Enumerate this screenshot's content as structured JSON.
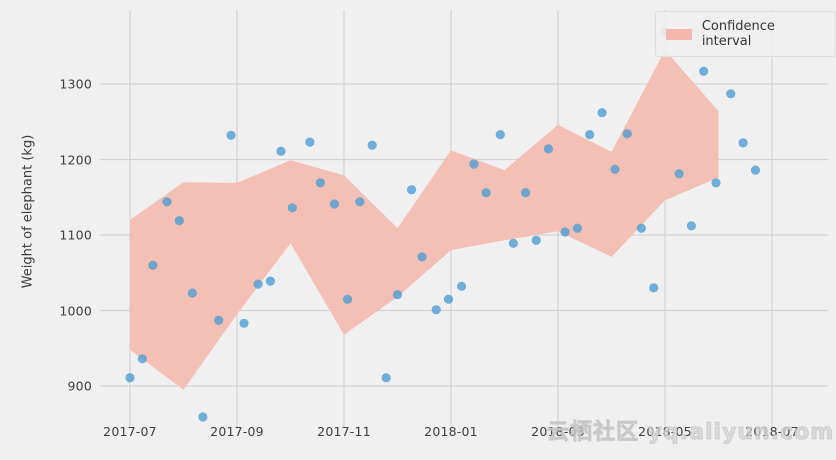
{
  "watermark": {
    "text": "云栖社区 yq.aliyun.com"
  },
  "chart_data": {
    "type": "scatter",
    "title": "",
    "xlabel": "",
    "ylabel": "Weight of elephant (kg)",
    "grid": true,
    "legend": {
      "label": "Confidence interval",
      "position": "upper right"
    },
    "x_tick_labels": [
      "2017-07",
      "2017-09",
      "2017-11",
      "2018-01",
      "2018-03",
      "2018-05",
      "2018-07"
    ],
    "y_ticks": [
      900,
      1000,
      1100,
      1200,
      1300
    ],
    "ylim": [
      855,
      1400
    ],
    "xlim": [
      "2017-06-14",
      "2018-08-02"
    ],
    "series": [
      {
        "name": "Weight of elephant (kg)",
        "type": "scatter",
        "points": [
          [
            "2017-07-01",
            911
          ],
          [
            "2017-07-08",
            936
          ],
          [
            "2017-07-14",
            1060
          ],
          [
            "2017-07-22",
            1144
          ],
          [
            "2017-07-29",
            1119
          ],
          [
            "2017-08-06",
            1023
          ],
          [
            "2017-08-12",
            859
          ],
          [
            "2017-08-21",
            987
          ],
          [
            "2017-08-28",
            1232
          ],
          [
            "2017-09-05",
            983
          ],
          [
            "2017-09-13",
            1035
          ],
          [
            "2017-09-20",
            1039
          ],
          [
            "2017-09-26",
            1211
          ],
          [
            "2017-10-02",
            1136
          ],
          [
            "2017-10-12",
            1223
          ],
          [
            "2017-10-18",
            1169
          ],
          [
            "2017-10-26",
            1141
          ],
          [
            "2017-11-03",
            1015
          ],
          [
            "2017-11-10",
            1144
          ],
          [
            "2017-11-17",
            1219
          ],
          [
            "2017-11-25",
            911
          ],
          [
            "2017-12-01",
            1021
          ],
          [
            "2017-12-09",
            1160
          ],
          [
            "2017-12-15",
            1071
          ],
          [
            "2017-12-23",
            1001
          ],
          [
            "2017-12-30",
            1015
          ],
          [
            "2018-01-07",
            1032
          ],
          [
            "2018-01-14",
            1194
          ],
          [
            "2018-01-21",
            1156
          ],
          [
            "2018-01-29",
            1233
          ],
          [
            "2018-02-06",
            1089
          ],
          [
            "2018-02-13",
            1156
          ],
          [
            "2018-02-19",
            1093
          ],
          [
            "2018-02-26",
            1214
          ],
          [
            "2018-03-05",
            1104
          ],
          [
            "2018-03-12",
            1109
          ],
          [
            "2018-03-19",
            1233
          ],
          [
            "2018-03-26",
            1262
          ],
          [
            "2018-04-03",
            1187
          ],
          [
            "2018-04-10",
            1234
          ],
          [
            "2018-04-18",
            1109
          ],
          [
            "2018-04-25",
            1030
          ],
          [
            "2018-05-01",
            1369
          ],
          [
            "2018-05-09",
            1181
          ],
          [
            "2018-05-16",
            1112
          ],
          [
            "2018-05-23",
            1317
          ],
          [
            "2018-05-30",
            1169
          ],
          [
            "2018-06-08",
            1287
          ],
          [
            "2018-06-15",
            1222
          ],
          [
            "2018-06-22",
            1186
          ]
        ]
      },
      {
        "name": "Confidence interval",
        "type": "band",
        "points": [
          [
            "2017-07",
            948,
            1120
          ],
          [
            "2017-08",
            895,
            1170
          ],
          [
            "2017-09",
            995,
            1169
          ],
          [
            "2017-10",
            1089,
            1199
          ],
          [
            "2017-11",
            968,
            1179
          ],
          [
            "2017-12",
            1018,
            1109
          ],
          [
            "2018-01",
            1080,
            1212
          ],
          [
            "2018-02",
            1093,
            1186
          ],
          [
            "2018-03",
            1105,
            1246
          ],
          [
            "2018-04",
            1071,
            1210
          ],
          [
            "2018-05",
            1146,
            1345
          ],
          [
            "2018-06",
            1176,
            1264
          ]
        ]
      }
    ],
    "style": {
      "background": "#f0f0f1",
      "grid_color": "#d4d2d3",
      "point_color": "#4e9ed2",
      "point_opacity": 0.8,
      "band_color": "#f4bfb5",
      "text_color": "#3d3d3d"
    }
  }
}
